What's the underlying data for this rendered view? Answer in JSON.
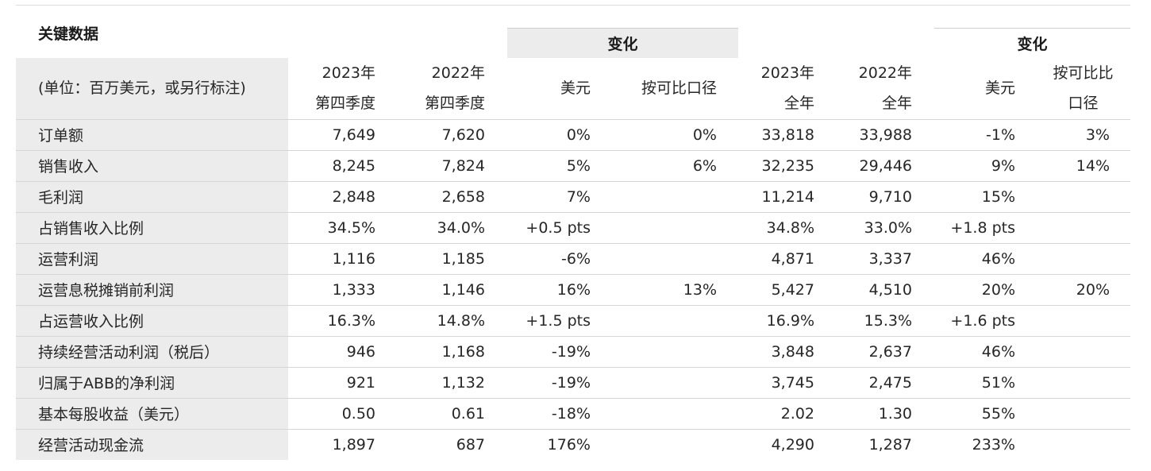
{
  "title": "关键数据",
  "change_label_quarter": "变化",
  "change_label_year": "变化",
  "header": {
    "unit": "(单位：百万美元，或另行标注)",
    "q2023_l1": "2023年",
    "q2023_l2": "第四季度",
    "q2022_l1": "2022年",
    "q2022_l2": "第四季度",
    "usd": "美元",
    "comparable": "按可比口径",
    "y2023_l1": "2023年",
    "y2023_l2": "全年",
    "y2022_l1": "2022年",
    "y2022_l2": "全年",
    "usd_y": "美元",
    "comparable_y_l1": "按可比比",
    "comparable_y_l2": "口径"
  },
  "rows": [
    [
      "订单额",
      "7,649",
      "7,620",
      "0%",
      "0%",
      "33,818",
      "33,988",
      "-1%",
      "3%"
    ],
    [
      "销售收入",
      "8,245",
      "7,824",
      "5%",
      "6%",
      "32,235",
      "29,446",
      "9%",
      "14%"
    ],
    [
      "毛利润",
      "2,848",
      "2,658",
      "7%",
      "",
      "11,214",
      "9,710",
      "15%",
      ""
    ],
    [
      "占销售收入比例",
      "34.5%",
      "34.0%",
      "+0.5 pts",
      "",
      "34.8%",
      "33.0%",
      "+1.8 pts",
      ""
    ],
    [
      "运营利润",
      "1,116",
      "1,185",
      "-6%",
      "",
      "4,871",
      "3,337",
      "46%",
      ""
    ],
    [
      "运营息税摊销前利润",
      "1,333",
      "1,146",
      "16%",
      "13%",
      "5,427",
      "4,510",
      "20%",
      "20%"
    ],
    [
      "占运营收入比例",
      "16.3%",
      "14.8%",
      "+1.5 pts",
      "",
      "16.9%",
      "15.3%",
      "+1.6 pts",
      ""
    ],
    [
      "持续经营活动利润（税后）",
      "946",
      "1,168",
      "-19%",
      "",
      "3,848",
      "2,637",
      "46%",
      ""
    ],
    [
      "归属于ABB的净利润",
      "921",
      "1,132",
      "-19%",
      "",
      "3,745",
      "2,475",
      "51%",
      ""
    ],
    [
      "基本每股收益（美元）",
      "0.50",
      "0.61",
      "-18%",
      "",
      "2.02",
      "1.30",
      "55%",
      ""
    ],
    [
      "经营活动现金流",
      "1,897",
      "687",
      "176%",
      "",
      "4,290",
      "1,287",
      "233%",
      ""
    ]
  ]
}
